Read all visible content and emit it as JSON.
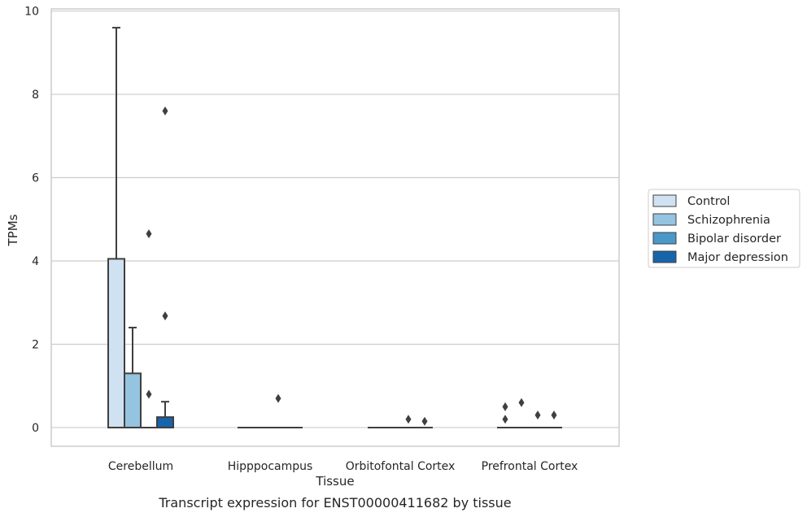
{
  "chart_data": {
    "type": "box",
    "title": "",
    "caption": "Transcript expression for ENST00000411682 by tissue",
    "xlabel": "Tissue",
    "ylabel": "TPMs",
    "ylim": [
      -0.45,
      10.05
    ],
    "yticks": [
      0,
      2,
      4,
      6,
      8,
      10
    ],
    "grid": true,
    "legend_position": "right",
    "categories": [
      "Cerebellum",
      "Hipppocampus",
      "Orbitofontal Cortex",
      "Prefrontal Cortex"
    ],
    "series": [
      {
        "name": "Control",
        "color": "#d0e1f2",
        "boxes": [
          {
            "q1": 0,
            "median": 0,
            "q3": 4.05,
            "whisker_low": 0,
            "whisker_high": 9.6,
            "outliers": []
          },
          {
            "q1": 0,
            "median": 0,
            "q3": 0,
            "whisker_low": 0,
            "whisker_high": 0,
            "outliers": []
          },
          {
            "q1": 0,
            "median": 0,
            "q3": 0,
            "whisker_low": 0,
            "whisker_high": 0,
            "outliers": []
          },
          {
            "q1": 0,
            "median": 0,
            "q3": 0,
            "whisker_low": 0,
            "whisker_high": 0,
            "outliers": [
              0.2,
              0.5
            ]
          }
        ]
      },
      {
        "name": "Schizophrenia",
        "color": "#94c4df",
        "boxes": [
          {
            "q1": 0,
            "median": 0,
            "q3": 1.3,
            "whisker_low": 0,
            "whisker_high": 2.4,
            "outliers": []
          },
          {
            "q1": 0,
            "median": 0,
            "q3": 0,
            "whisker_low": 0,
            "whisker_high": 0,
            "outliers": []
          },
          {
            "q1": 0,
            "median": 0,
            "q3": 0,
            "whisker_low": 0,
            "whisker_high": 0,
            "outliers": []
          },
          {
            "q1": 0,
            "median": 0,
            "q3": 0,
            "whisker_low": 0,
            "whisker_high": 0,
            "outliers": [
              0.6
            ]
          }
        ]
      },
      {
        "name": "Bipolar disorder",
        "color": "#4a98c9",
        "boxes": [
          {
            "q1": 0,
            "median": 0,
            "q3": 0,
            "whisker_low": 0,
            "whisker_high": 0,
            "outliers": [
              0.8,
              4.65
            ]
          },
          {
            "q1": 0,
            "median": 0,
            "q3": 0,
            "whisker_low": 0,
            "whisker_high": 0,
            "outliers": [
              0.7
            ]
          },
          {
            "q1": 0,
            "median": 0,
            "q3": 0,
            "whisker_low": 0,
            "whisker_high": 0,
            "outliers": [
              0.2
            ]
          },
          {
            "q1": 0,
            "median": 0,
            "q3": 0,
            "whisker_low": 0,
            "whisker_high": 0,
            "outliers": [
              0.3
            ]
          }
        ]
      },
      {
        "name": "Major depression",
        "color": "#1764ab",
        "boxes": [
          {
            "q1": 0,
            "median": 0,
            "q3": 0.25,
            "whisker_low": 0,
            "whisker_high": 0.62,
            "outliers": [
              2.68,
              7.6
            ]
          },
          {
            "q1": 0,
            "median": 0,
            "q3": 0,
            "whisker_low": 0,
            "whisker_high": 0,
            "outliers": []
          },
          {
            "q1": 0,
            "median": 0,
            "q3": 0,
            "whisker_low": 0,
            "whisker_high": 0,
            "outliers": [
              0.15
            ]
          },
          {
            "q1": 0,
            "median": 0,
            "q3": 0,
            "whisker_low": 0,
            "whisker_high": 0,
            "outliers": [
              0.3
            ]
          }
        ]
      }
    ]
  }
}
